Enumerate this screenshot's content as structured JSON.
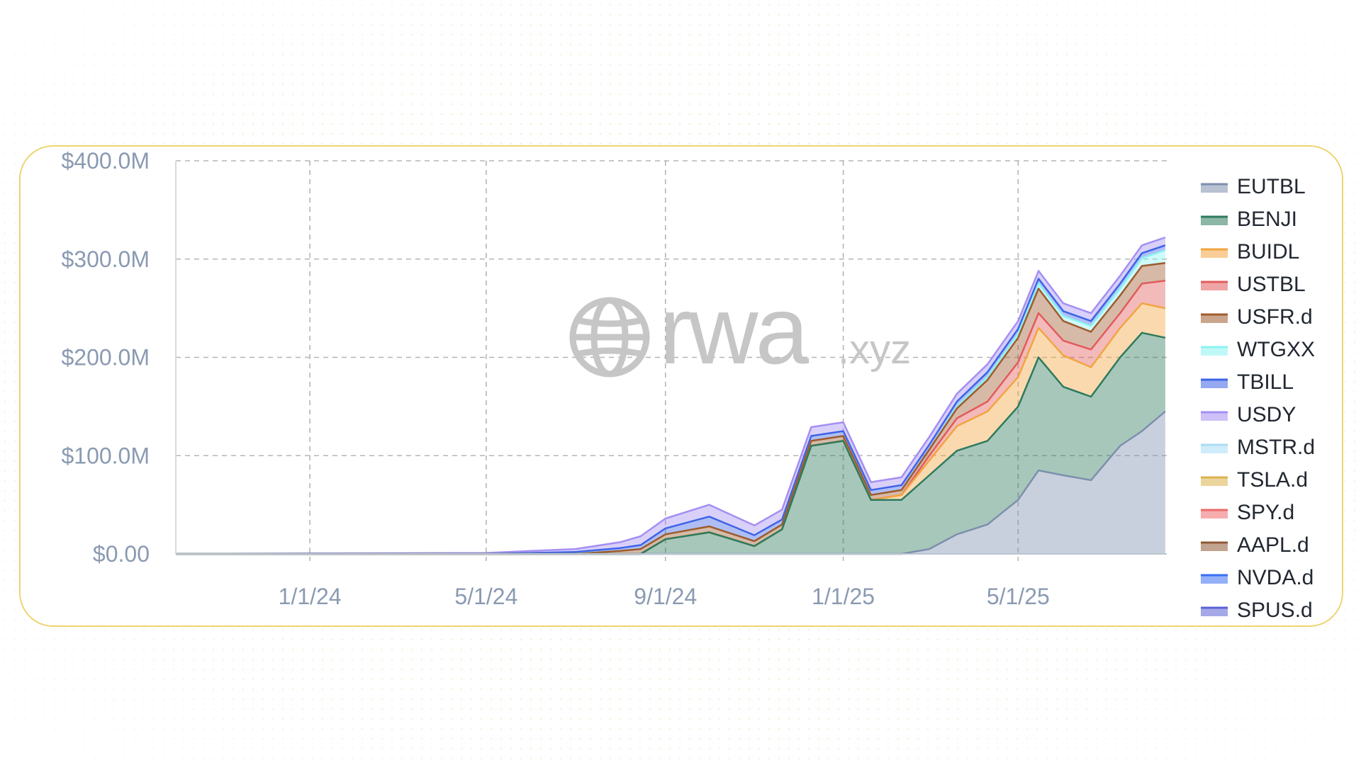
{
  "chart_data": {
    "type": "area",
    "stacked": true,
    "title": "",
    "xlabel": "",
    "ylabel": "",
    "ylim": [
      0,
      400
    ],
    "y_unit": "$M",
    "yticks": [
      {
        "value": 0,
        "label": "$0.00"
      },
      {
        "value": 100,
        "label": "$100.0M"
      },
      {
        "value": 200,
        "label": "$200.0M"
      },
      {
        "value": 300,
        "label": "$300.0M"
      },
      {
        "value": 400,
        "label": "$400.0M"
      }
    ],
    "xlim": [
      "2023-10-01",
      "2025-08-11"
    ],
    "xticks": [
      {
        "date": "2024-01-01",
        "label": "1/1/24"
      },
      {
        "date": "2024-05-01",
        "label": "5/1/24"
      },
      {
        "date": "2024-09-01",
        "label": "9/1/24"
      },
      {
        "date": "2025-01-01",
        "label": "1/1/25"
      },
      {
        "date": "2025-05-01",
        "label": "5/1/25"
      }
    ],
    "grid": true,
    "legend_position": "right",
    "x": [
      "2023-10-01",
      "2024-01-01",
      "2024-05-01",
      "2024-06-01",
      "2024-07-01",
      "2024-08-01",
      "2024-08-15",
      "2024-09-01",
      "2024-10-01",
      "2024-11-01",
      "2024-11-20",
      "2024-12-10",
      "2025-01-01",
      "2025-01-20",
      "2025-02-10",
      "2025-03-01",
      "2025-03-20",
      "2025-04-10",
      "2025-05-01",
      "2025-05-15",
      "2025-06-01",
      "2025-06-20",
      "2025-07-10",
      "2025-07-25",
      "2025-08-10"
    ],
    "series": [
      {
        "name": "EUTBL",
        "color": "#7d8fad",
        "values": [
          0,
          0,
          0,
          0,
          0,
          0,
          0,
          0,
          0,
          0,
          0,
          0,
          0,
          0,
          0,
          5,
          20,
          30,
          55,
          85,
          80,
          75,
          110,
          125,
          145
        ]
      },
      {
        "name": "BENJI",
        "color": "#2e7a5c",
        "values": [
          0,
          0,
          0,
          0,
          0,
          0,
          0,
          15,
          22,
          8,
          25,
          110,
          115,
          55,
          55,
          75,
          85,
          85,
          95,
          115,
          90,
          85,
          90,
          100,
          75
        ]
      },
      {
        "name": "BUIDL",
        "color": "#f2a441",
        "values": [
          0,
          0,
          0,
          0,
          0,
          0,
          0,
          0,
          0,
          0,
          0,
          0,
          0,
          0,
          5,
          15,
          25,
          30,
          30,
          30,
          32,
          30,
          30,
          30,
          30
        ]
      },
      {
        "name": "USTBL",
        "color": "#e25b5b",
        "values": [
          0,
          0,
          0,
          0,
          0,
          0,
          0,
          0,
          0,
          0,
          0,
          0,
          0,
          0,
          0,
          5,
          8,
          10,
          15,
          15,
          15,
          18,
          15,
          20,
          28
        ]
      },
      {
        "name": "USFR.d",
        "color": "#9e5b2d",
        "values": [
          0,
          0,
          0,
          0,
          0,
          3,
          5,
          5,
          6,
          5,
          5,
          5,
          5,
          5,
          5,
          6,
          10,
          22,
          25,
          25,
          20,
          18,
          18,
          18,
          18
        ]
      },
      {
        "name": "WTGXX",
        "color": "#8df2f2",
        "values": [
          0,
          0,
          0,
          0,
          0,
          0,
          0,
          0,
          0,
          0,
          0,
          0,
          0,
          0,
          0,
          0,
          2,
          3,
          4,
          5,
          5,
          6,
          7,
          8,
          13
        ]
      },
      {
        "name": "TBILL",
        "color": "#3e63e6",
        "values": [
          0,
          0,
          0,
          1,
          2,
          3,
          4,
          6,
          10,
          6,
          5,
          5,
          5,
          5,
          5,
          5,
          5,
          5,
          5,
          5,
          5,
          5,
          5,
          5,
          5
        ]
      },
      {
        "name": "USDY",
        "color": "#a58ef3",
        "values": [
          0,
          0.5,
          1,
          2,
          3,
          6,
          9,
          10,
          12,
          10,
          10,
          9,
          9,
          8,
          8,
          8,
          8,
          8,
          8,
          8,
          8,
          8,
          8,
          8,
          8
        ]
      },
      {
        "name": "MSTR.d",
        "color": "#a8dcf5",
        "values": [
          0,
          0,
          0,
          0,
          0,
          0,
          0,
          0,
          0,
          0,
          0,
          0,
          0,
          0,
          0,
          0,
          0,
          0,
          0,
          0,
          0,
          0,
          0,
          0,
          0
        ]
      },
      {
        "name": "TSLA.d",
        "color": "#dcb24c",
        "values": [
          0,
          0,
          0,
          0,
          0,
          0,
          0,
          0,
          0,
          0,
          0,
          0,
          0,
          0,
          0,
          0,
          0,
          0,
          0,
          0,
          0,
          0,
          0,
          0,
          0
        ]
      },
      {
        "name": "SPY.d",
        "color": "#ee6a6a",
        "values": [
          0,
          0,
          0,
          0,
          0,
          0,
          0,
          0,
          0,
          0,
          0,
          0,
          0,
          0,
          0,
          0,
          0,
          0,
          0,
          0,
          0,
          0,
          0,
          0,
          0
        ]
      },
      {
        "name": "AAPL.d",
        "color": "#8e5a34",
        "values": [
          0,
          0,
          0,
          0,
          0,
          0,
          0,
          0,
          0,
          0,
          0,
          0,
          0,
          0,
          0,
          0,
          0,
          0,
          0,
          0,
          0,
          0,
          0,
          0,
          0
        ]
      },
      {
        "name": "NVDA.d",
        "color": "#3a6ff2",
        "values": [
          0,
          0,
          0,
          0,
          0,
          0,
          0,
          0,
          0,
          0,
          0,
          0,
          0,
          0,
          0,
          0,
          0,
          0,
          0,
          0,
          0,
          0,
          0,
          0,
          0
        ]
      },
      {
        "name": "SPUS.d",
        "color": "#5b62d6",
        "values": [
          0,
          0,
          0,
          0,
          0,
          0,
          0,
          0,
          0,
          0,
          0,
          0,
          0,
          0,
          0,
          0,
          0,
          0,
          0,
          0,
          0,
          0,
          0,
          0,
          0
        ]
      }
    ]
  },
  "watermark": {
    "text": "rwa",
    "suffix": ".xyz",
    "icon": "globe-icon"
  }
}
